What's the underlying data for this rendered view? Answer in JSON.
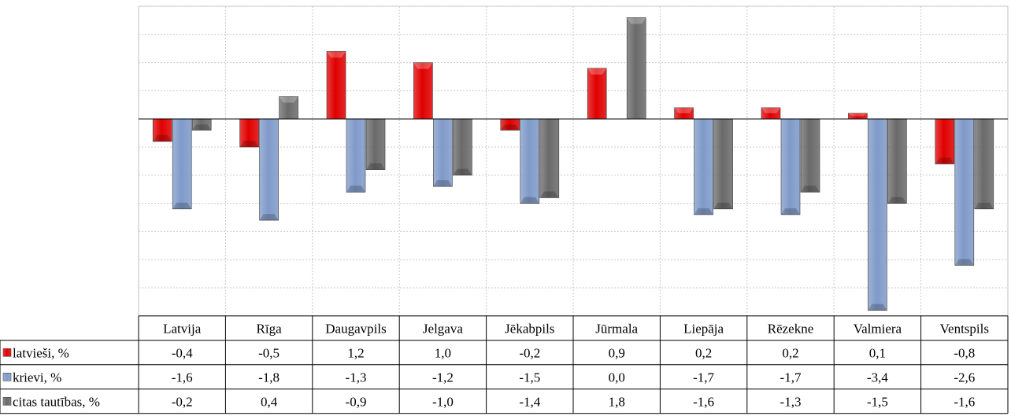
{
  "colors": {
    "latviesi": "#e00000",
    "krievi": "#7f9ac9",
    "citas": "#6a6a6a"
  },
  "chart_data": {
    "type": "bar",
    "categories": [
      "Latvija",
      "Rīga",
      "Daugavpils",
      "Jelgava",
      "Jēkabpils",
      "Jūrmala",
      "Liepāja",
      "Rēzekne",
      "Valmiera",
      "Ventspils"
    ],
    "series": [
      {
        "name": "latvieši, %",
        "values": [
          -0.4,
          -0.5,
          1.2,
          1.0,
          -0.2,
          0.9,
          0.2,
          0.2,
          0.1,
          -0.8
        ],
        "labels": [
          "-0,4",
          "-0,5",
          "1,2",
          "1,0",
          "-0,2",
          "0,9",
          "0,2",
          "0,2",
          "0,1",
          "-0,8"
        ]
      },
      {
        "name": "krievi, %",
        "values": [
          -1.6,
          -1.8,
          -1.3,
          -1.2,
          -1.5,
          0.0,
          -1.7,
          -1.7,
          -3.4,
          -2.6
        ],
        "labels": [
          "-1,6",
          "-1,8",
          "-1,3",
          "-1,2",
          "-1,5",
          "0,0",
          "-1,7",
          "-1,7",
          "-3,4",
          "-2,6"
        ]
      },
      {
        "name": "citas tautības, %",
        "values": [
          -0.2,
          0.4,
          -0.9,
          -1.0,
          -1.4,
          1.8,
          -1.6,
          -1.3,
          -1.5,
          -1.6
        ],
        "labels": [
          "-0,2",
          "0,4",
          "-0,9",
          "-1,0",
          "-1,4",
          "1,8",
          "-1,6",
          "-1,3",
          "-1,5",
          "-1,6"
        ]
      }
    ],
    "ylim": [
      -3.5,
      2.0
    ],
    "grid": true,
    "legend": "data-table-left"
  }
}
